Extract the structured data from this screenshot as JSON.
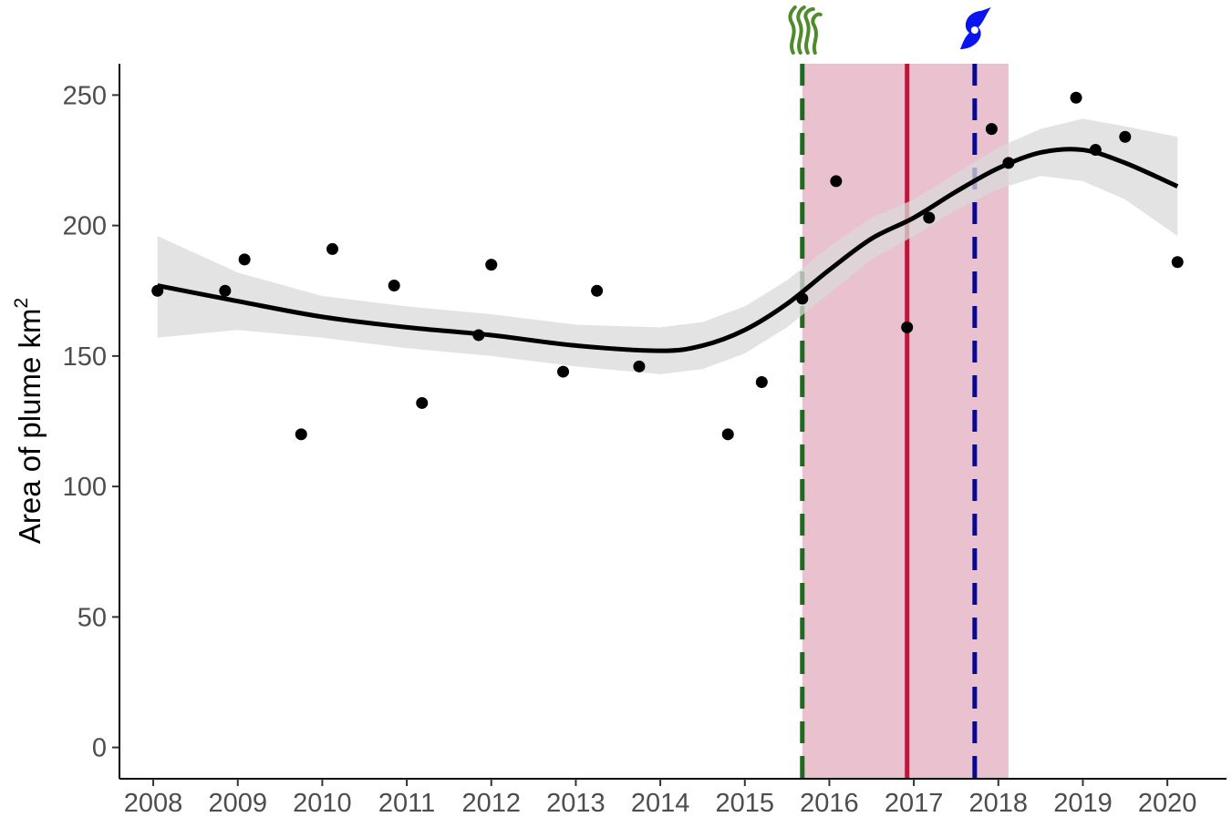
{
  "chart_data": {
    "type": "scatter",
    "title": "",
    "xlabel": "",
    "ylabel": "Area of plume  km",
    "ylabel_superscript": "2",
    "xlim": [
      2007.6,
      2020.7
    ],
    "ylim": [
      -12,
      262
    ],
    "x_ticks": [
      2008,
      2009,
      2010,
      2011,
      2012,
      2013,
      2014,
      2015,
      2016,
      2017,
      2018,
      2019,
      2020
    ],
    "y_ticks": [
      0,
      50,
      100,
      150,
      200,
      250
    ],
    "grid": false,
    "legend": "none",
    "series": [
      {
        "kind": "points",
        "color": "#000000",
        "x": [
          2008.05,
          2008.85,
          2009.08,
          2009.75,
          2010.12,
          2010.85,
          2011.18,
          2011.85,
          2012.0,
          2012.85,
          2013.25,
          2013.75,
          2014.8,
          2015.2,
          2015.68,
          2016.08,
          2016.92,
          2017.18,
          2017.92,
          2018.12,
          2018.92,
          2019.15,
          2019.5,
          2020.12
        ],
        "y": [
          175,
          175,
          187,
          120,
          191,
          177,
          132,
          158,
          185,
          144,
          175,
          146,
          120,
          140,
          172,
          217,
          161,
          203,
          237,
          224,
          249,
          229,
          234,
          186
        ]
      },
      {
        "kind": "smooth",
        "color": "#000000",
        "band_color": "#d9d9d9",
        "x": [
          2008.05,
          2009,
          2010,
          2011,
          2012,
          2013,
          2014,
          2014.5,
          2015,
          2015.5,
          2016,
          2016.5,
          2017,
          2017.5,
          2018,
          2018.5,
          2019,
          2019.5,
          2020.12
        ],
        "y": [
          177,
          171,
          165,
          161,
          158,
          154,
          152,
          154,
          160,
          170,
          183,
          195,
          203,
          213,
          222,
          228,
          229,
          224,
          215
        ],
        "lower": [
          157,
          160,
          157,
          153,
          150,
          146,
          143,
          145,
          151,
          161,
          174,
          187,
          196,
          206,
          214,
          219,
          217,
          210,
          196
        ],
        "upper": [
          196,
          182,
          173,
          169,
          166,
          162,
          161,
          163,
          169,
          179,
          192,
          203,
          210,
          220,
          230,
          237,
          241,
          238,
          234
        ]
      }
    ],
    "shaded_region": {
      "x0": 2015.68,
      "x1": 2018.12,
      "color": "#e9c1cf"
    },
    "vlines": [
      {
        "x": 2015.68,
        "color": "#1d6b1d",
        "style": "dashed",
        "marker": "seaweed-icon",
        "marker_color": "#4f8a2b"
      },
      {
        "x": 2016.92,
        "color": "#b8193a",
        "style": "solid"
      },
      {
        "x": 2017.72,
        "color": "#0a0a8c",
        "style": "dashed",
        "marker": "hurricane-icon",
        "marker_color": "#0a14f0"
      }
    ]
  }
}
